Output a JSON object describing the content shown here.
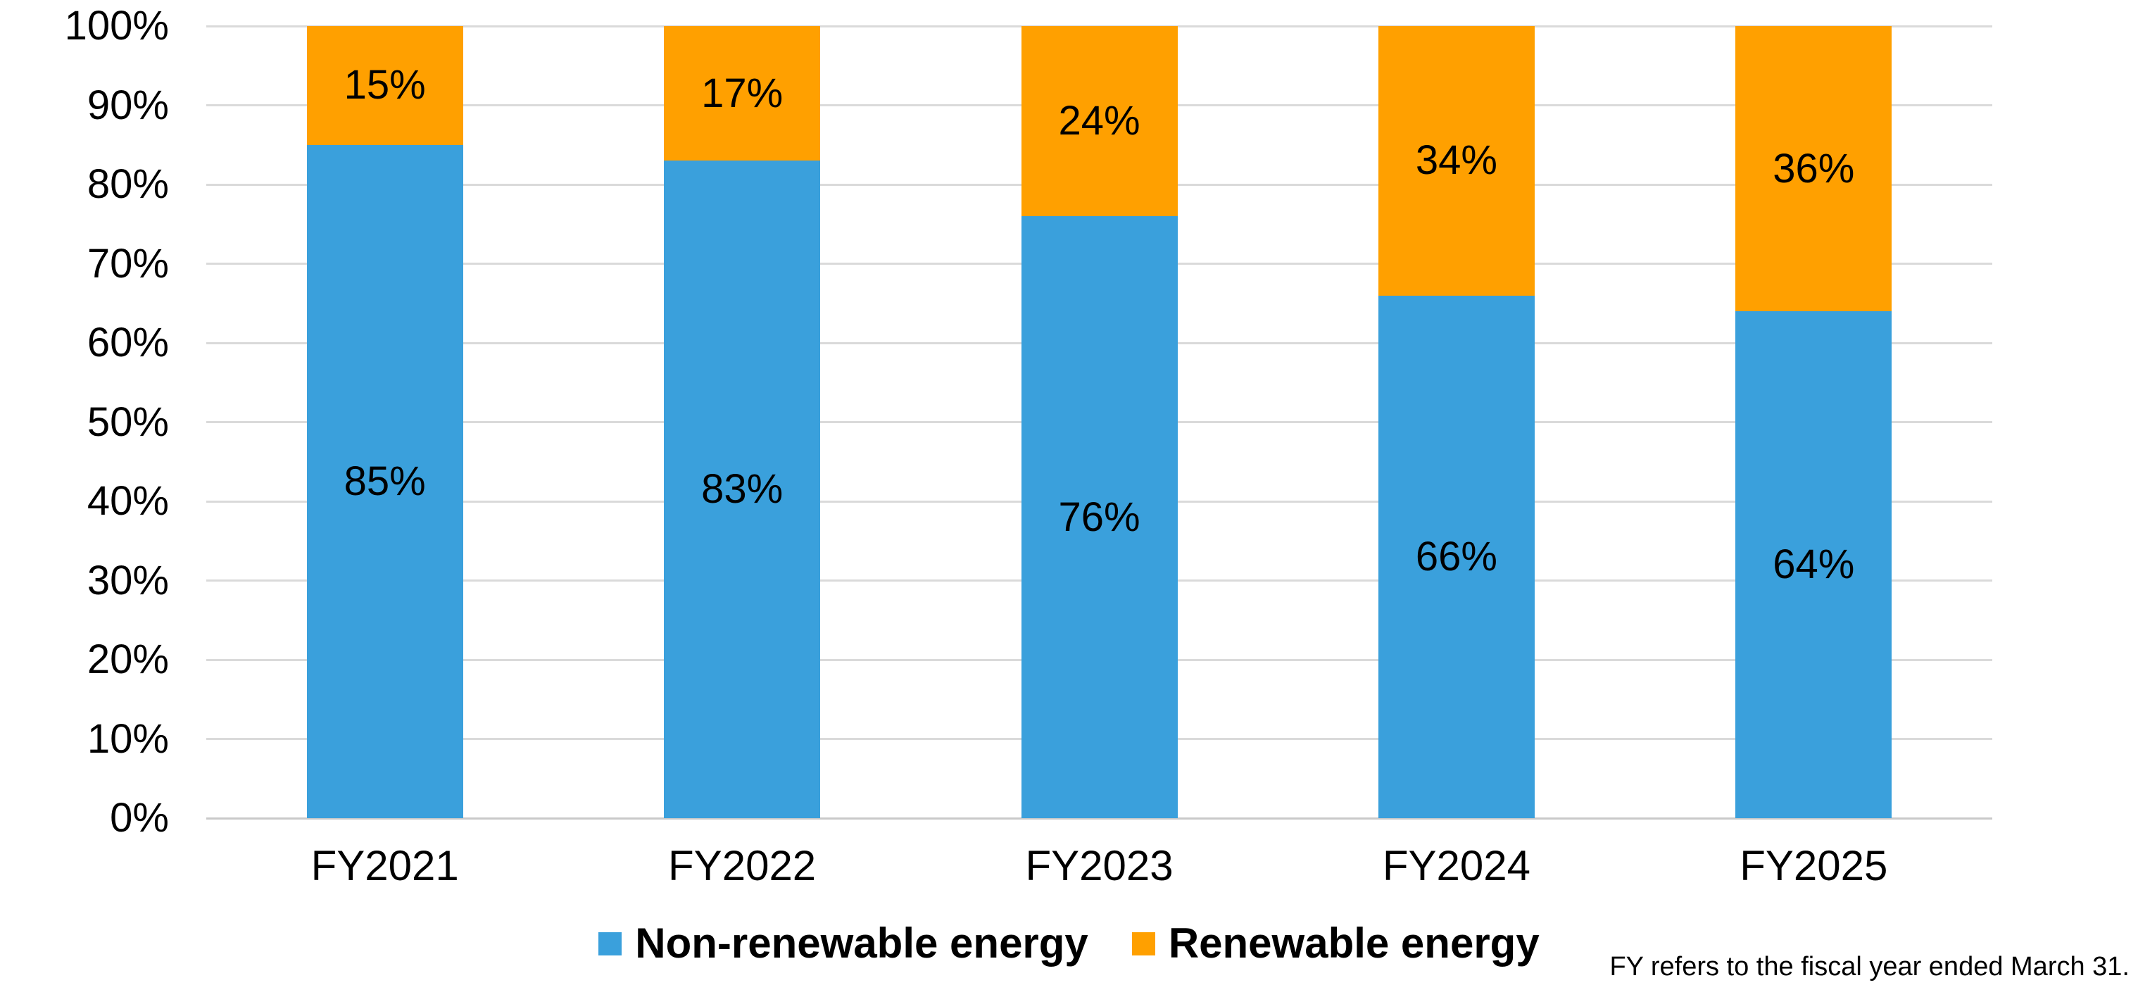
{
  "chart_data": {
    "type": "bar",
    "stacked": true,
    "stacked_unit": "percent",
    "title": "",
    "categories": [
      "FY2021",
      "FY2022",
      "FY2023",
      "FY2024",
      "FY2025"
    ],
    "series": [
      {
        "name": "Non-renewable energy",
        "color": "#3AA0DC",
        "values": [
          85,
          83,
          76,
          66,
          64
        ],
        "data_labels": [
          "85%",
          "83%",
          "76%",
          "66%",
          "64%"
        ]
      },
      {
        "name": "Renewable energy",
        "color": "#FFA000",
        "values": [
          15,
          17,
          24,
          34,
          36
        ],
        "data_labels": [
          "15%",
          "17%",
          "24%",
          "34%",
          "36%"
        ]
      }
    ],
    "y_axis": {
      "min": 0,
      "max": 100,
      "tick_step": 10,
      "tick_labels": [
        "0%",
        "10%",
        "20%",
        "30%",
        "40%",
        "50%",
        "60%",
        "70%",
        "80%",
        "90%",
        "100%"
      ]
    },
    "grid": true,
    "legend_position": "bottom-center",
    "footnote": "FY refers to the fiscal year ended March 31.",
    "style": {
      "gridline_color": "#DADADA",
      "axis_line_color": "#C9C9C9",
      "label_color": "#000000",
      "background": "#FFFFFF"
    }
  }
}
